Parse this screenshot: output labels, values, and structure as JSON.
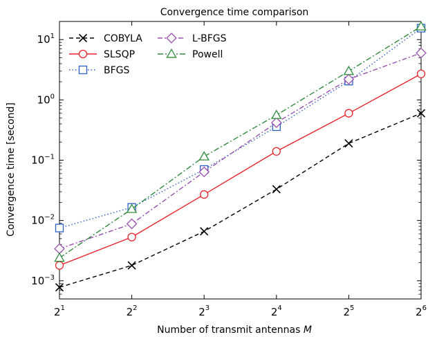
{
  "chart_data": {
    "type": "line",
    "title": "Convergence time comparison",
    "xlabel": "Number of transmit antennas",
    "xlabel_var": "M",
    "ylabel": "Convergence time [second]",
    "x_scale": "log2",
    "y_scale": "log10",
    "x": [
      2,
      4,
      8,
      16,
      32,
      64
    ],
    "x_tick_labels": [
      {
        "base": "2",
        "exp": "1"
      },
      {
        "base": "2",
        "exp": "2"
      },
      {
        "base": "2",
        "exp": "3"
      },
      {
        "base": "2",
        "exp": "4"
      },
      {
        "base": "2",
        "exp": "5"
      },
      {
        "base": "2",
        "exp": "6"
      }
    ],
    "y_tick_labels": [
      {
        "base": "10",
        "exp": "1",
        "value": 10
      },
      {
        "base": "10",
        "exp": "0",
        "value": 1
      },
      {
        "base": "10",
        "exp": "−1",
        "value": 0.1
      },
      {
        "base": "10",
        "exp": "−2",
        "value": 0.01
      },
      {
        "base": "10",
        "exp": "−3",
        "value": 0.001
      }
    ],
    "xlim": [
      2,
      64
    ],
    "ylim": [
      0.0005,
      20
    ],
    "grid": false,
    "legend_position": "upper-left",
    "series": [
      {
        "name": "COBYLA",
        "color": "#000000",
        "marker": "x",
        "dash": "6,4",
        "values": [
          0.00078,
          0.0018,
          0.0066,
          0.033,
          0.19,
          0.6
        ]
      },
      {
        "name": "SLSQP",
        "color": "#e8232a",
        "marker": "circle",
        "dash": "",
        "values": [
          0.0018,
          0.0053,
          0.027,
          0.14,
          0.6,
          2.7
        ]
      },
      {
        "name": "BFGS",
        "color": "#2a5ec8",
        "marker": "square",
        "dash": "1.5,3",
        "values": [
          0.0075,
          0.0165,
          0.07,
          0.36,
          2.05,
          15.5
        ]
      },
      {
        "name": "L-BFGS",
        "color": "#9a4fb0",
        "marker": "diamond",
        "dash": "7,3,2,3",
        "values": [
          0.0034,
          0.0088,
          0.064,
          0.42,
          2.2,
          6.0
        ]
      },
      {
        "name": "Powell",
        "color": "#2e8b3c",
        "marker": "triangle",
        "dash": "8,3,2,3",
        "values": [
          0.0024,
          0.0155,
          0.115,
          0.56,
          3.0,
          16.5
        ]
      }
    ]
  }
}
